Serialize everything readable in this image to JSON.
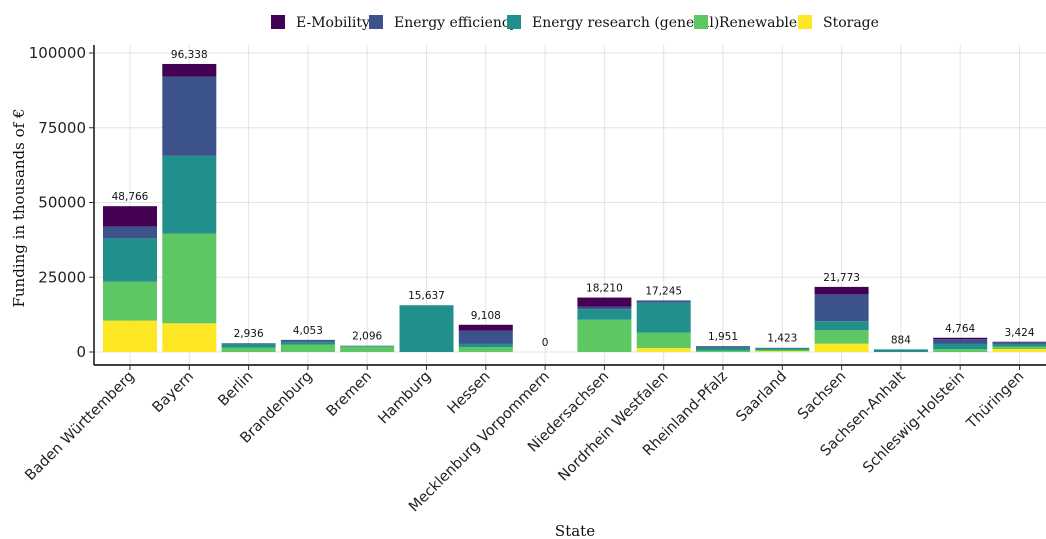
{
  "chart_data": {
    "type": "bar",
    "stacked": true,
    "title": "",
    "xlabel": "State",
    "ylabel": "Funding in thousands of €",
    "ylim": [
      0,
      100000
    ],
    "yticks": [
      0,
      25000,
      50000,
      75000,
      100000
    ],
    "grid": true,
    "legend_position": "top",
    "categories": [
      "Baden Württemberg",
      "Bayern",
      "Berlin",
      "Brandenburg",
      "Bremen",
      "Hamburg",
      "Hessen",
      "Mecklenburg Vorpommern",
      "Niedersachsen",
      "Nordrhein Westfalen",
      "Rheinland-Pfalz",
      "Saarland",
      "Sachsen",
      "Sachsen-Anhalt",
      "Schleswig-Holstein",
      "Thüringen"
    ],
    "totals": [
      48766,
      96338,
      2936,
      4053,
      2096,
      15637,
      9108,
      0,
      18210,
      17245,
      1951,
      1423,
      21773,
      884,
      4764,
      3424
    ],
    "total_labels": [
      "48,766",
      "96,338",
      "2,936",
      "4,053",
      "2,096",
      "15,637",
      "9,108",
      "0",
      "18,210",
      "17,245",
      "1,951",
      "1,423",
      "21,773",
      "884",
      "4,764",
      "3,424"
    ],
    "series": [
      {
        "name": "Storage",
        "color": "#FDE725",
        "values": [
          10500,
          9600,
          0,
          0,
          0,
          0,
          0,
          0,
          0,
          1300,
          0,
          300,
          2800,
          0,
          0,
          1000
        ]
      },
      {
        "name": "Renewables",
        "color": "#5DC863",
        "values": [
          13000,
          30000,
          1500,
          2500,
          1800,
          0,
          1600,
          0,
          10800,
          5200,
          500,
          400,
          4500,
          0,
          1000,
          800
        ]
      },
      {
        "name": "Energy research (general)",
        "color": "#21908C",
        "values": [
          14500,
          26000,
          1200,
          900,
          200,
          15637,
          1100,
          0,
          3500,
          10000,
          900,
          700,
          3000,
          884,
          1700,
          900
        ]
      },
      {
        "name": "Energy efficiency",
        "color": "#3B528B",
        "values": [
          4000,
          26500,
          236,
          653,
          96,
          0,
          4408,
          0,
          900,
          745,
          551,
          23,
          8973,
          0,
          1564,
          524
        ]
      },
      {
        "name": "E-Mobility",
        "color": "#440154",
        "values": [
          6766,
          4238,
          0,
          0,
          0,
          0,
          2000,
          0,
          3010,
          0,
          0,
          0,
          2500,
          0,
          500,
          200
        ]
      }
    ],
    "legend_order": [
      "E-Mobility",
      "Energy efficiency",
      "Energy research (general)",
      "Renewables",
      "Storage"
    ]
  }
}
